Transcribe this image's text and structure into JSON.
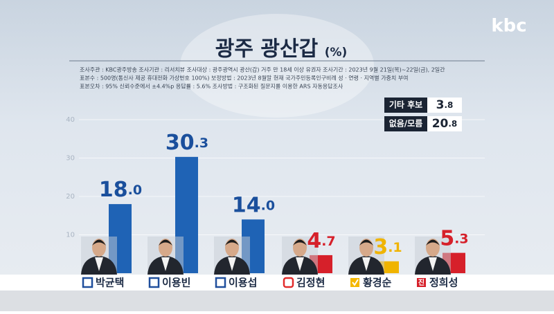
{
  "chart_data": {
    "type": "bar",
    "logo": "kbc",
    "title": "광주 광산갑",
    "unit": "(%)",
    "notes": [
      "조사주관 : KBC광주방송   조사기관 : 리서치뷰   조사대상 : 광주광역시 광산(갑) 거주 만 18세 이상 유권자   조사기간 : 2023년 9월 21일(목)~22일(금), 2일간",
      "표본수 : 500명(통신사 제공 휴대전화 가상번호 100%)   보정방법 : 2023년 8월말 현재 국가주민등록인구비례 성 · 연령 · 지역별 가중치 부여",
      "표본오차 : 95% 신뢰수준에서 ±4.4%p   응답률 : 5.6%   조사방법 : 구조화된 질문지를 이용한 ARS 자동응답조사"
    ],
    "categories": [
      "박균택",
      "이용빈",
      "이용섭",
      "김정현",
      "황경순",
      "정희성"
    ],
    "values": [
      18.0,
      30.3,
      14.0,
      4.7,
      3.1,
      5.3
    ],
    "value_labels": [
      "18.0",
      "30.3",
      "14.0",
      "4.7",
      "3.1",
      "5.3"
    ],
    "colors": [
      "#1f63b5",
      "#1f63b5",
      "#1f63b5",
      "#d6202a",
      "#f0b400",
      "#d6202a"
    ],
    "ylim": [
      0,
      40
    ],
    "yticks": [
      10,
      20,
      30,
      40
    ],
    "grid": true,
    "others": {
      "labels": [
        "기타 후보",
        "없음/모름"
      ],
      "values": [
        3.8,
        20.8
      ]
    },
    "party_badge": "진"
  }
}
